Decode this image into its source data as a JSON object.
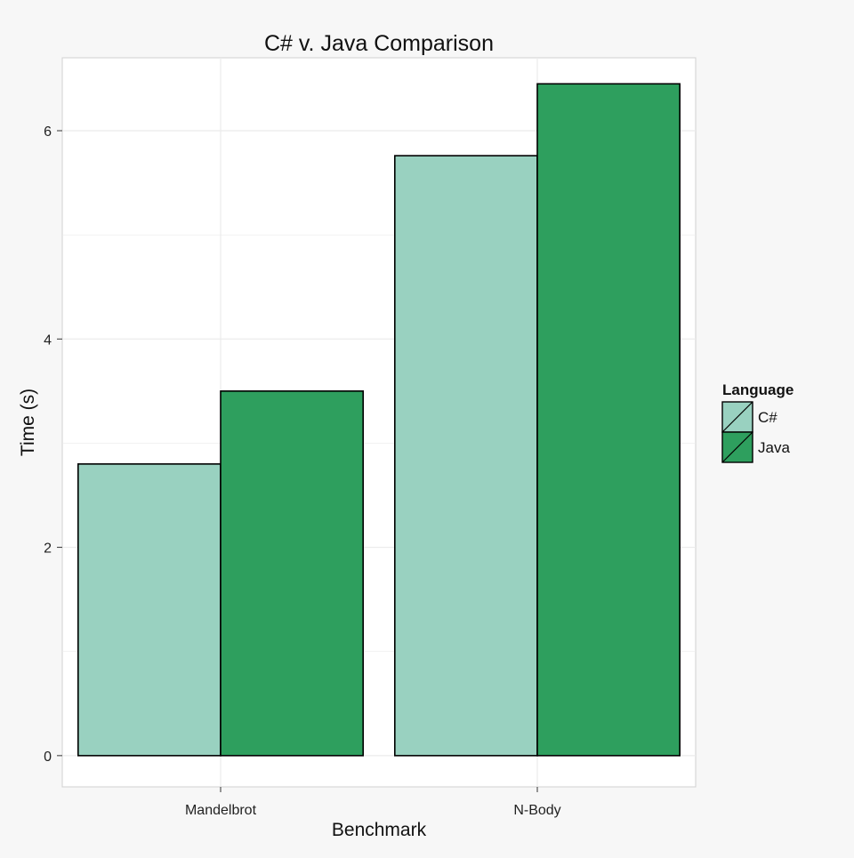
{
  "chart_data": {
    "type": "bar",
    "title": "C# v. Java Comparison",
    "xlabel": "Benchmark",
    "ylabel": "Time (s)",
    "categories": [
      "Mandelbrot",
      "N-Body"
    ],
    "series": [
      {
        "name": "C#",
        "values": [
          2.8,
          5.76
        ],
        "color": "#99d1c0"
      },
      {
        "name": "Java",
        "values": [
          3.5,
          6.45
        ],
        "color": "#2e9f5e"
      }
    ],
    "ylim": [
      -0.3,
      6.7
    ],
    "yticks": [
      0,
      2,
      4,
      6
    ],
    "grid": true,
    "legend": {
      "title": "Language",
      "placement": "right"
    }
  },
  "colors": {
    "page_background": "#f7f7f7",
    "panel_background": "#ffffff",
    "grid": "#ebebeb",
    "bar_outline": "#000000"
  }
}
